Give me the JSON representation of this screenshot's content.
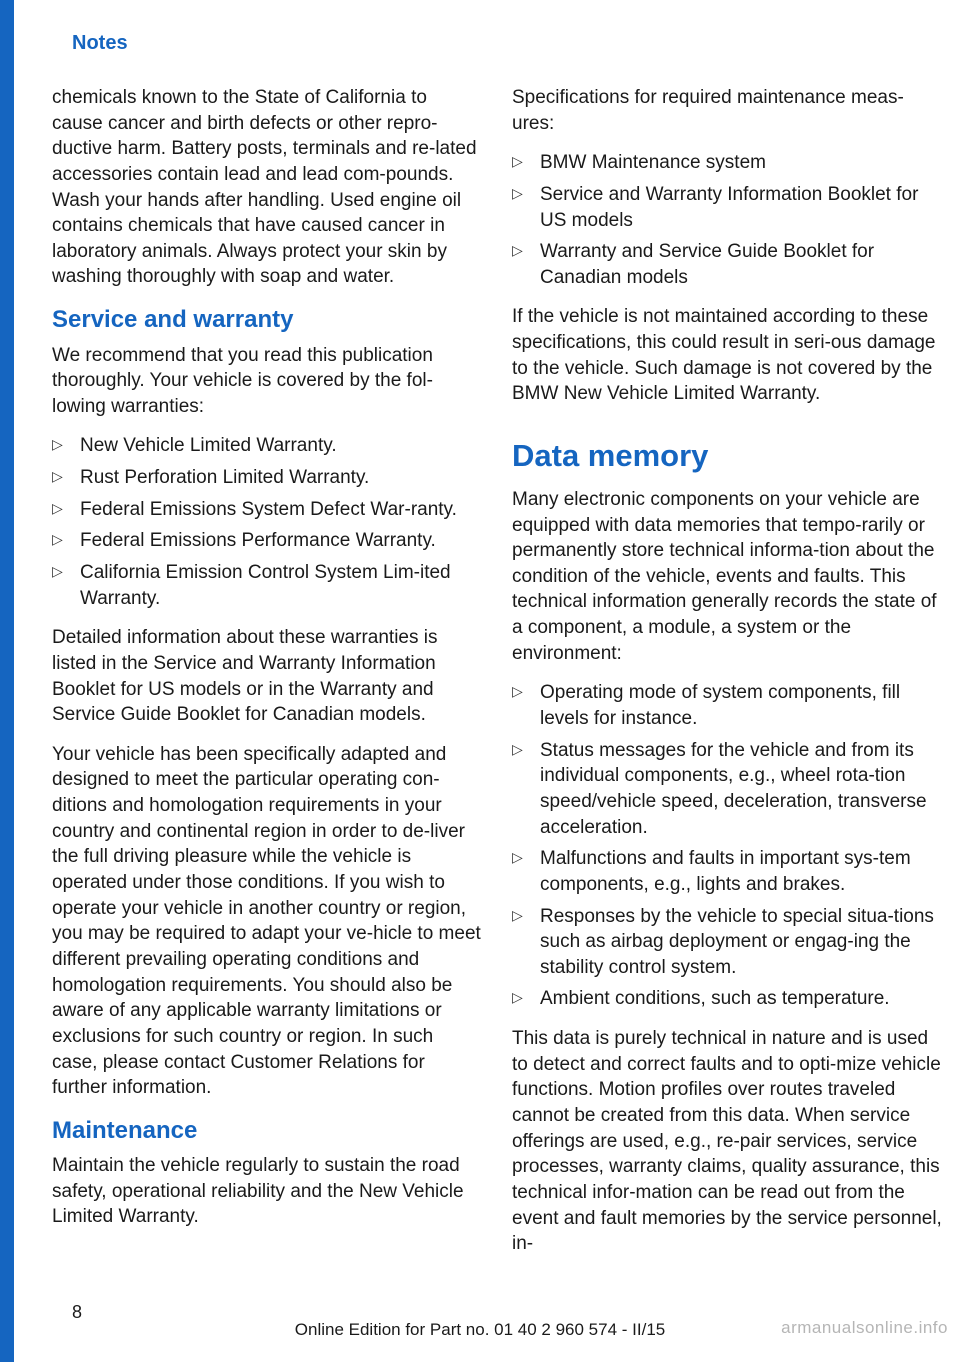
{
  "header": "Notes",
  "page_number": "8",
  "edition_line": "Online Edition for Part no. 01 40 2 960 574 - II/15",
  "watermark": "armanualsonline.info",
  "colors": {
    "heading": "#1565c0",
    "bar": "#1565c0",
    "text": "#1a1a1a",
    "background": "#ffffff"
  },
  "left": {
    "para1": "chemicals known to the State of California to cause cancer and birth defects or other repro‐ductive harm. Battery posts, terminals and re‐lated accessories contain lead and lead com‐pounds. Wash your hands after handling. Used engine oil contains chemicals that have caused cancer in laboratory animals. Always protect your skin by washing thoroughly with soap and water.",
    "h2a": "Service and warranty",
    "para2": "We recommend that you read this publication thoroughly. Your vehicle is covered by the fol‐lowing warranties:",
    "list1": [
      "New Vehicle Limited Warranty.",
      "Rust Perforation Limited Warranty.",
      "Federal Emissions System Defect War‐ranty.",
      "Federal Emissions Performance Warranty.",
      "California Emission Control System Lim‐ited Warranty."
    ],
    "para3": "Detailed information about these warranties is listed in the Service and Warranty Information Booklet for US models or in the Warranty and Service Guide Booklet for Canadian models.",
    "para4": "Your vehicle has been specifically adapted and designed to meet the particular operating con‐ditions and homologation requirements in your country and continental region in order to de‐liver the full driving pleasure while the vehicle is operated under those conditions. If you wish to operate your vehicle in another country or region, you may be required to adapt your ve‐hicle to meet different prevailing operating conditions and homologation requirements. You should also be aware of any applicable warranty limitations or exclusions for such country or region. In such case, please contact Customer Relations for further information.",
    "h2b": "Maintenance",
    "para5": "Maintain the vehicle regularly to sustain the road safety, operational reliability and the New Vehicle Limited Warranty."
  },
  "right": {
    "para1": "Specifications for required maintenance meas‐ures:",
    "list1": [
      "BMW Maintenance system",
      "Service and Warranty Information Booklet for US models",
      "Warranty and Service Guide Booklet for Canadian models"
    ],
    "para2": "If the vehicle is not maintained according to these specifications, this could result in seri‐ous damage to the vehicle. Such damage is not covered by the BMW New Vehicle Limited Warranty.",
    "h1": "Data memory",
    "para3": "Many electronic components on your vehicle are equipped with data memories that tempo‐rarily or permanently store technical informa‐tion about the condition of the vehicle, events and faults. This technical information generally records the state of a component, a module, a system or the environment:",
    "list2": [
      "Operating mode of system components, fill levels for instance.",
      "Status messages for the vehicle and from its individual components, e.g., wheel rota‐tion speed/vehicle speed, deceleration, transverse acceleration.",
      "Malfunctions and faults in important sys‐tem components, e.g., lights and brakes.",
      "Responses by the vehicle to special situa‐tions such as airbag deployment or engag‐ing the stability control system.",
      "Ambient conditions, such as temperature."
    ],
    "para4": "This data is purely technical in nature and is used to detect and correct faults and to opti‐mize vehicle functions. Motion profiles over routes traveled cannot be created from this data. When service offerings are used, e.g., re‐pair services, service processes, warranty claims, quality assurance, this technical infor‐mation can be read out from the event and fault memories by the service personnel, in‐"
  }
}
